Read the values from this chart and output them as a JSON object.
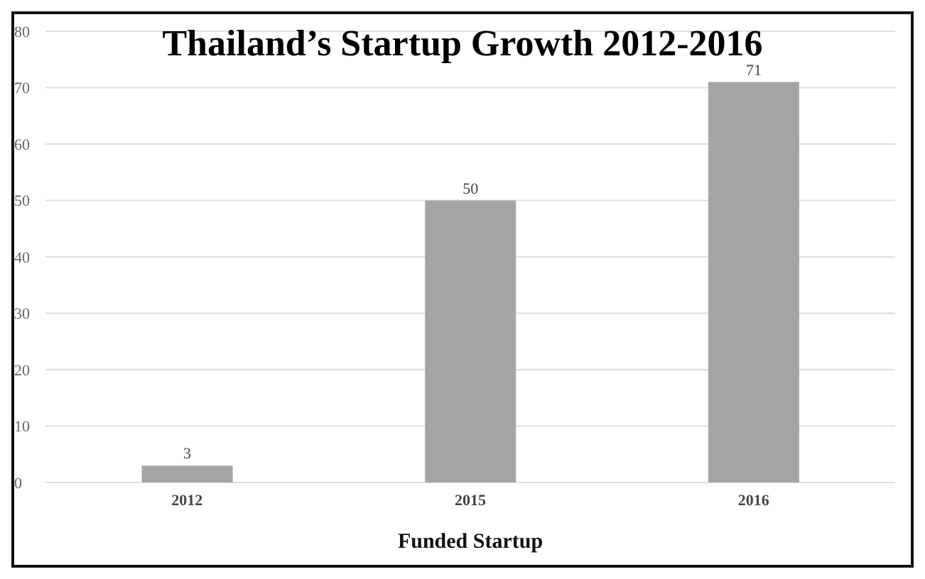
{
  "chart_data": {
    "type": "bar",
    "title": "Thailand’s Startup Growth 2012-2016",
    "xlabel": "Funded Startup",
    "categories": [
      "2012",
      "2015",
      "2016"
    ],
    "values": [
      3,
      50,
      71
    ],
    "color": "#a5a5a5",
    "ylim": [
      0,
      80
    ],
    "yticks": [
      0,
      10,
      20,
      30,
      40,
      50,
      60,
      70,
      80
    ],
    "grid": "y",
    "data_labels": true
  }
}
